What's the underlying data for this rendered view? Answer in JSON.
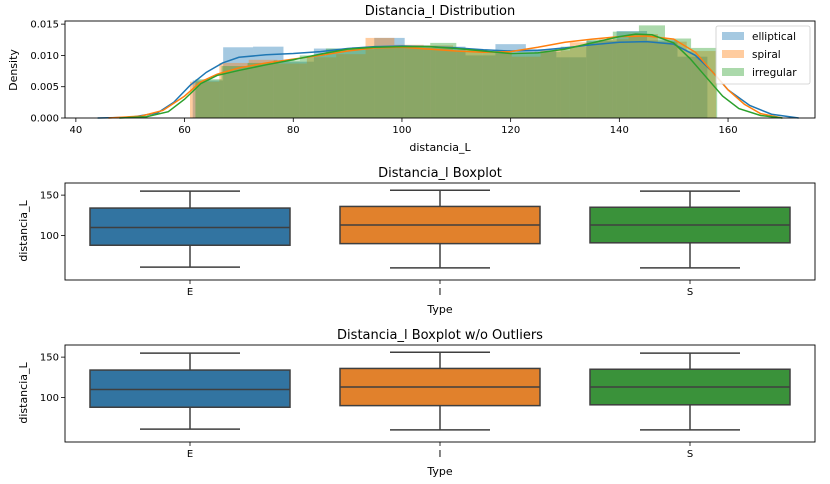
{
  "chart_data": [
    {
      "type": "histogram",
      "title": "Distancia_l Distribution",
      "xlabel": "distancia_L",
      "ylabel": "Density",
      "xlim": [
        38,
        176
      ],
      "ylim": [
        0,
        0.0155
      ],
      "xticks": [
        40,
        60,
        80,
        100,
        120,
        140,
        160
      ],
      "yticks": [
        0.0,
        0.005,
        0.01,
        0.015
      ],
      "ytick_labels": [
        "0.000",
        "0.005",
        "0.010",
        "0.015"
      ],
      "legend_position": "top-right",
      "series": [
        {
          "name": "elliptical",
          "color": "#1f77b4",
          "bin_edges": [
            61.5,
            67.1,
            72.6,
            78.2,
            83.8,
            89.4,
            94.9,
            100.5,
            106.1,
            111.7,
            117.2,
            122.8,
            128.4,
            133.9,
            139.5,
            145.1,
            150.7,
            156.2
          ],
          "density": [
            0.006,
            0.0113,
            0.0114,
            0.009,
            0.0111,
            0.011,
            0.0128,
            0.0112,
            0.0114,
            0.01,
            0.0118,
            0.011,
            0.0097,
            0.0123,
            0.0139,
            0.0124,
            0.0098
          ],
          "kde_x": [
            44,
            50,
            55,
            58,
            61,
            64,
            67,
            70,
            75,
            80,
            85,
            90,
            95,
            100,
            105,
            110,
            115,
            120,
            125,
            130,
            135,
            140,
            145,
            150,
            154,
            157,
            160,
            164,
            168,
            173
          ],
          "kde_y": [
            0.0,
            0.0001,
            0.0008,
            0.0025,
            0.0052,
            0.0073,
            0.0088,
            0.0097,
            0.0101,
            0.0103,
            0.0106,
            0.0111,
            0.0114,
            0.0115,
            0.0114,
            0.0112,
            0.0109,
            0.0107,
            0.0108,
            0.0112,
            0.0117,
            0.0121,
            0.0122,
            0.0118,
            0.01,
            0.0075,
            0.0045,
            0.002,
            0.0006,
            0.0
          ]
        },
        {
          "name": "spiral",
          "color": "#ff7f0e",
          "bin_edges": [
            61.0,
            66.4,
            71.8,
            77.1,
            82.5,
            87.9,
            93.3,
            98.6,
            104.0,
            109.4,
            114.8,
            120.2,
            125.5,
            130.9,
            136.3,
            141.7,
            147.1,
            152.4,
            157.8
          ],
          "density": [
            0.0058,
            0.0088,
            0.0093,
            0.0087,
            0.0097,
            0.0102,
            0.0128,
            0.0117,
            0.0116,
            0.0108,
            0.0105,
            0.0098,
            0.0108,
            0.0121,
            0.0126,
            0.0134,
            0.0122,
            0.0107
          ],
          "kde_x": [
            46,
            52,
            56,
            60,
            63,
            66,
            70,
            75,
            80,
            85,
            90,
            95,
            100,
            105,
            110,
            115,
            120,
            125,
            130,
            135,
            140,
            145,
            150,
            154,
            157,
            160,
            163,
            166,
            170
          ],
          "kde_y": [
            0.0,
            0.0003,
            0.0012,
            0.0035,
            0.0058,
            0.007,
            0.008,
            0.0088,
            0.0094,
            0.01,
            0.0107,
            0.0112,
            0.0113,
            0.011,
            0.0107,
            0.0105,
            0.0106,
            0.0113,
            0.0121,
            0.0126,
            0.013,
            0.0131,
            0.0126,
            0.0105,
            0.0075,
            0.0045,
            0.0022,
            0.0007,
            0.0
          ]
        },
        {
          "name": "irregular",
          "color": "#2ca02c",
          "bin_edges": [
            62.0,
            66.8,
            71.6,
            76.4,
            81.2,
            86.0,
            90.8,
            95.6,
            100.4,
            105.2,
            110.0,
            114.8,
            119.6,
            124.4,
            129.2,
            134.0,
            138.8,
            143.6,
            148.4,
            153.2,
            158.0
          ],
          "density": [
            0.0062,
            0.0083,
            0.0088,
            0.0092,
            0.01,
            0.0111,
            0.0113,
            0.0112,
            0.0116,
            0.012,
            0.011,
            0.0107,
            0.0104,
            0.0106,
            0.0114,
            0.0125,
            0.0138,
            0.0148,
            0.0127,
            0.0112
          ],
          "kde_x": [
            48,
            53,
            57,
            60,
            63,
            66,
            70,
            75,
            80,
            85,
            90,
            95,
            100,
            105,
            110,
            115,
            120,
            125,
            130,
            135,
            140,
            143,
            146,
            150,
            153,
            156,
            159,
            162,
            166,
            170
          ],
          "kde_y": [
            0.0,
            0.0002,
            0.001,
            0.003,
            0.0055,
            0.0068,
            0.0076,
            0.0085,
            0.0093,
            0.0102,
            0.011,
            0.0113,
            0.0114,
            0.0114,
            0.0111,
            0.0107,
            0.0103,
            0.0104,
            0.011,
            0.012,
            0.013,
            0.0134,
            0.0133,
            0.012,
            0.0095,
            0.0065,
            0.0035,
            0.0015,
            0.0004,
            0.0
          ]
        }
      ]
    },
    {
      "type": "boxplot",
      "title": "Distancia_l Boxplot",
      "xlabel": "Type",
      "ylabel": "distancia_L",
      "ylim": [
        45,
        165
      ],
      "yticks": [
        100,
        150
      ],
      "categories": [
        "E",
        "I",
        "S"
      ],
      "boxes": [
        {
          "category": "E",
          "color": "#3274a1",
          "whislo": 61,
          "q1": 88,
          "median": 110,
          "q3": 134,
          "whishi": 155
        },
        {
          "category": "I",
          "color": "#e1812c",
          "whislo": 60,
          "q1": 90,
          "median": 113,
          "q3": 136,
          "whishi": 156
        },
        {
          "category": "S",
          "color": "#3a923a",
          "whislo": 60,
          "q1": 91,
          "median": 113,
          "q3": 135,
          "whishi": 155
        }
      ]
    },
    {
      "type": "boxplot",
      "title": "Distancia_l Boxplot w/o Outliers",
      "xlabel": "Type",
      "ylabel": "distancia_L",
      "ylim": [
        45,
        165
      ],
      "yticks": [
        100,
        150
      ],
      "categories": [
        "E",
        "I",
        "S"
      ],
      "boxes": [
        {
          "category": "E",
          "color": "#3274a1",
          "whislo": 61,
          "q1": 88,
          "median": 110,
          "q3": 134,
          "whishi": 155
        },
        {
          "category": "I",
          "color": "#e1812c",
          "whislo": 60,
          "q1": 90,
          "median": 113,
          "q3": 136,
          "whishi": 156
        },
        {
          "category": "S",
          "color": "#3a923a",
          "whislo": 60,
          "q1": 91,
          "median": 113,
          "q3": 135,
          "whishi": 155
        }
      ]
    }
  ]
}
